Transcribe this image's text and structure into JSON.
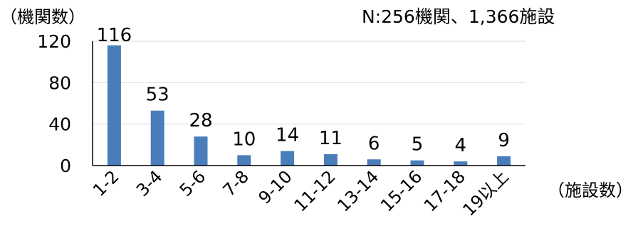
{
  "chart_data": {
    "type": "bar",
    "ylabel": "（機関数）",
    "xlabel": "（施設数）",
    "annotation": "N:256機関、1,366施設",
    "categories": [
      "1-2",
      "3-4",
      "5-6",
      "7-8",
      "9-10",
      "11-12",
      "13-14",
      "15-16",
      "17-18",
      "19以上"
    ],
    "values": [
      116,
      53,
      28,
      10,
      14,
      11,
      6,
      5,
      4,
      9
    ],
    "ylim": [
      0,
      120
    ],
    "yticks": [
      0,
      40,
      80,
      120
    ],
    "grid": true,
    "bar_color": "#4a7ebb"
  }
}
